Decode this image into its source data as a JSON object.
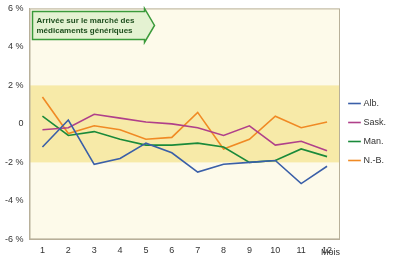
{
  "chart_data": {
    "type": "line",
    "categories": [
      1,
      2,
      3,
      4,
      5,
      6,
      7,
      8,
      9,
      10,
      11,
      12
    ],
    "x_label": "Mois",
    "series": [
      {
        "name": "Alb.",
        "color": "#3a5fa8",
        "values": [
          -1.2,
          0.2,
          -2.1,
          -1.8,
          -1.0,
          -1.5,
          -2.5,
          -2.1,
          -2.0,
          -1.9,
          -3.1,
          -2.2
        ]
      },
      {
        "name": "Sask.",
        "color": "#b0408a",
        "values": [
          -0.3,
          -0.2,
          0.5,
          0.3,
          0.1,
          0.0,
          -0.2,
          -0.6,
          -0.1,
          -1.1,
          -0.9,
          -1.4
        ]
      },
      {
        "name": "Man.",
        "color": "#1a8a3a",
        "values": [
          0.4,
          -0.6,
          -0.4,
          -0.8,
          -1.1,
          -1.1,
          -1.0,
          -1.2,
          -2.0,
          -1.9,
          -1.3,
          -1.7
        ]
      },
      {
        "name": "N.-B.",
        "color": "#f08a24",
        "values": [
          1.4,
          -0.5,
          -0.1,
          -0.3,
          -0.8,
          -0.7,
          0.6,
          -1.3,
          -0.8,
          0.4,
          -0.2,
          0.1
        ]
      }
    ],
    "ylim": [
      -6,
      6
    ],
    "yticks": [
      {
        "value": -6,
        "label": "-6 %"
      },
      {
        "value": -4,
        "label": "-4 %"
      },
      {
        "value": -2,
        "label": "-2 %"
      },
      {
        "value": 0,
        "label": "0"
      },
      {
        "value": 2,
        "label": "2 %"
      },
      {
        "value": 4,
        "label": "4 %"
      },
      {
        "value": 6,
        "label": "6 %"
      }
    ],
    "shaded_band": [
      -2,
      2
    ],
    "annotation": "Arrivée sur le marché des médicaments génériques",
    "grid": false,
    "legend": "right"
  }
}
